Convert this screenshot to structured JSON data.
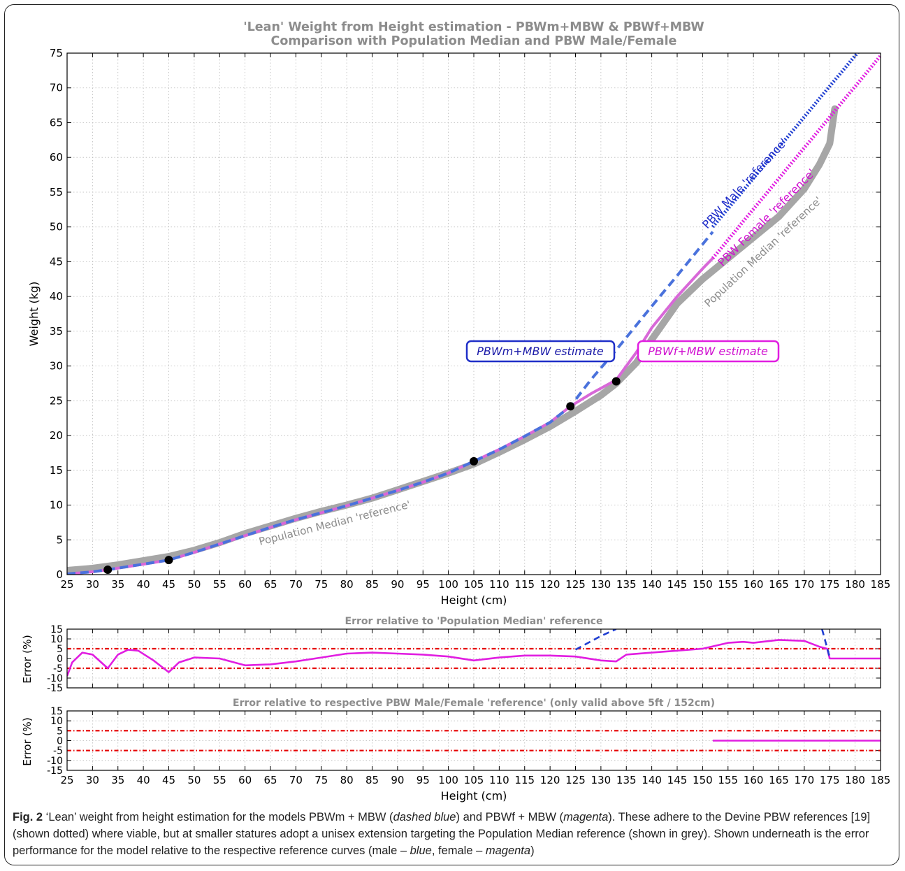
{
  "figure": {
    "label": "Fig. 2",
    "caption_parts": [
      {
        "text": " ‘Lean’ weight from height estimation for the models PBWm + MBW (",
        "italic": false
      },
      {
        "text": "dashed blue",
        "italic": true
      },
      {
        "text": ") and PBWf + MBW (",
        "italic": false
      },
      {
        "text": "magenta",
        "italic": true
      },
      {
        "text": "). These adhere to the Devine PBW references [19] (shown dotted) where viable, but at smaller statures adopt a unisex extension targeting the Population Median reference (shown in grey). Shown underneath is the error performance for the model relative to the respective reference curves (male – ",
        "italic": false
      },
      {
        "text": "blue",
        "italic": true
      },
      {
        "text": ", female – ",
        "italic": false
      },
      {
        "text": "magenta",
        "italic": true
      },
      {
        "text": ")",
        "italic": false
      }
    ]
  },
  "colors": {
    "median": "#a6a6a6",
    "male": "#1f3ed1",
    "male_model": "#4a72dc",
    "female": "#e11ee1",
    "female_model": "#d868d8",
    "threshold": "#e60000",
    "title": "#8c8c8c"
  },
  "chart_data": [
    {
      "type": "line",
      "title": "'Lean' Weight from Height estimation - PBWm+MBW & PBWf+MBW\nComparison with Population Median and PBW Male/Female",
      "xlabel": "Height (cm)",
      "ylabel": "Weight (kg)",
      "xlim": [
        25,
        185
      ],
      "ylim": [
        0,
        75
      ],
      "xticks": [
        25,
        30,
        35,
        40,
        45,
        50,
        55,
        60,
        65,
        70,
        75,
        80,
        85,
        90,
        95,
        100,
        105,
        110,
        115,
        120,
        125,
        130,
        135,
        140,
        145,
        150,
        155,
        160,
        165,
        170,
        175,
        180,
        185
      ],
      "yticks": [
        0,
        5,
        10,
        15,
        20,
        25,
        30,
        35,
        40,
        45,
        50,
        55,
        60,
        65,
        70,
        75
      ],
      "grid": true,
      "series": [
        {
          "name": "Population Median 'reference'",
          "style": "thick grey",
          "x": [
            25,
            30,
            35,
            40,
            45,
            50,
            55,
            60,
            65,
            70,
            75,
            80,
            85,
            90,
            95,
            100,
            105,
            110,
            115,
            120,
            125,
            130,
            133,
            137,
            140,
            145,
            150,
            155,
            160,
            165,
            170,
            173,
            175,
            176
          ],
          "y": [
            0.6,
            0.9,
            1.4,
            2.0,
            2.6,
            3.5,
            4.6,
            5.9,
            7.0,
            8.1,
            9.1,
            10.0,
            11.0,
            12.2,
            13.4,
            14.6,
            15.9,
            17.6,
            19.4,
            21.3,
            23.5,
            25.8,
            27.5,
            30.5,
            33.8,
            39.0,
            42.5,
            45.5,
            48.5,
            51.5,
            55.5,
            59.0,
            62.0,
            67.0
          ]
        },
        {
          "name": "PBW Male 'reference'",
          "style": "dotted blue",
          "x": [
            152,
            181
          ],
          "y": [
            50.0,
            75.5
          ]
        },
        {
          "name": "PBW Female 'reference'",
          "style": "dotted magenta",
          "x": [
            152,
            186
          ],
          "y": [
            45.5,
            75.5
          ]
        },
        {
          "name": "PBWm+MBW estimate",
          "style": "dashed blue",
          "x": [
            25,
            30,
            33,
            40,
            45,
            50,
            55,
            60,
            65,
            70,
            75,
            80,
            85,
            90,
            95,
            100,
            105,
            110,
            115,
            120,
            124,
            128,
            133,
            140,
            145,
            150,
            152
          ],
          "y": [
            0.1,
            0.4,
            0.7,
            1.5,
            2.1,
            3.2,
            4.4,
            5.6,
            6.8,
            7.9,
            8.9,
            9.9,
            11.0,
            12.1,
            13.3,
            14.6,
            16.3,
            18.0,
            19.9,
            21.9,
            24.2,
            28.0,
            32.3,
            38.6,
            43.0,
            47.5,
            49.3
          ]
        },
        {
          "name": "PBWf+MBW estimate",
          "style": "solid magenta",
          "x": [
            25,
            30,
            33,
            40,
            45,
            50,
            55,
            60,
            65,
            70,
            75,
            80,
            85,
            90,
            95,
            100,
            105,
            110,
            115,
            120,
            124,
            128,
            133,
            137,
            140,
            145,
            150,
            152
          ],
          "y": [
            0.1,
            0.4,
            0.7,
            1.5,
            2.1,
            3.2,
            4.4,
            5.6,
            6.8,
            7.9,
            8.9,
            9.9,
            11.0,
            12.1,
            13.3,
            14.6,
            16.3,
            18.0,
            19.9,
            21.9,
            24.2,
            26.0,
            28.0,
            32.0,
            35.5,
            40.0,
            44.0,
            45.5
          ]
        }
      ],
      "points": {
        "x": [
          33,
          45,
          105,
          124,
          133
        ],
        "y": [
          0.7,
          2.1,
          16.3,
          24.2,
          27.8
        ]
      },
      "annotations": [
        {
          "text": "PBWm+MBW estimate",
          "color": "blue",
          "boxed": true
        },
        {
          "text": "PBWf+MBW estimate",
          "color": "magenta",
          "boxed": true
        },
        {
          "text": "PBW Male 'reference'",
          "color": "blue"
        },
        {
          "text": "PBW Female 'reference'",
          "color": "magenta"
        },
        {
          "text": "Population Median 'reference'",
          "color": "grey"
        },
        {
          "text": "Population Median 'reference'",
          "color": "grey"
        }
      ]
    },
    {
      "type": "line",
      "title": "Error relative to 'Population Median' reference",
      "xlabel": "",
      "ylabel": "Error (%)",
      "xlim": [
        25,
        185
      ],
      "ylim": [
        -15,
        15
      ],
      "yticks": [
        -15,
        -10,
        -5,
        0,
        5,
        10,
        15
      ],
      "grid": true,
      "thresholds": [
        5,
        -5
      ],
      "series": [
        {
          "name": "",
          "style": "solid magenta",
          "x": [
            25,
            26,
            28,
            30,
            33,
            35,
            37,
            39,
            42,
            45,
            47,
            50,
            55,
            60,
            65,
            70,
            75,
            80,
            85,
            90,
            95,
            100,
            105,
            110,
            115,
            120,
            125,
            130,
            133,
            135,
            140,
            145,
            150,
            155,
            158,
            160,
            165,
            170,
            173,
            174.5,
            175,
            185
          ],
          "y": [
            -9,
            -2,
            3,
            2,
            -5,
            2,
            4.5,
            4,
            -1,
            -7,
            -2,
            0.5,
            0,
            -3.5,
            -3,
            -1.5,
            0.5,
            2.5,
            3,
            2.5,
            2,
            1,
            -1,
            0.5,
            1.5,
            1.5,
            1,
            -1,
            -1.5,
            2,
            3,
            4,
            5,
            8,
            8.5,
            8,
            9.5,
            9,
            6,
            5,
            0,
            0
          ]
        },
        {
          "name": "",
          "style": "dashed blue",
          "x": [
            125,
            130,
            133
          ],
          "y": [
            4.5,
            11.5,
            15
          ]
        },
        {
          "name": "",
          "style": "dashed blue",
          "x": [
            173.5,
            175
          ],
          "y": [
            15,
            0.5
          ]
        }
      ]
    },
    {
      "type": "line",
      "title": "Error relative to respective PBW Male/Female 'reference' (only valid above 5ft / 152cm)",
      "xlabel": "Height (cm)",
      "ylabel": "Error (%)",
      "xlim": [
        25,
        185
      ],
      "ylim": [
        -15,
        15
      ],
      "xticks": [
        25,
        30,
        35,
        40,
        45,
        50,
        55,
        60,
        65,
        70,
        75,
        80,
        85,
        90,
        95,
        100,
        105,
        110,
        115,
        120,
        125,
        130,
        135,
        140,
        145,
        150,
        155,
        160,
        165,
        170,
        175,
        180,
        185
      ],
      "yticks": [
        -15,
        -10,
        -5,
        0,
        5,
        10,
        15
      ],
      "grid": true,
      "thresholds": [
        5,
        -5
      ],
      "series": [
        {
          "name": "",
          "style": "solid magenta",
          "x": [
            152,
            185
          ],
          "y": [
            0,
            0
          ]
        }
      ]
    }
  ]
}
